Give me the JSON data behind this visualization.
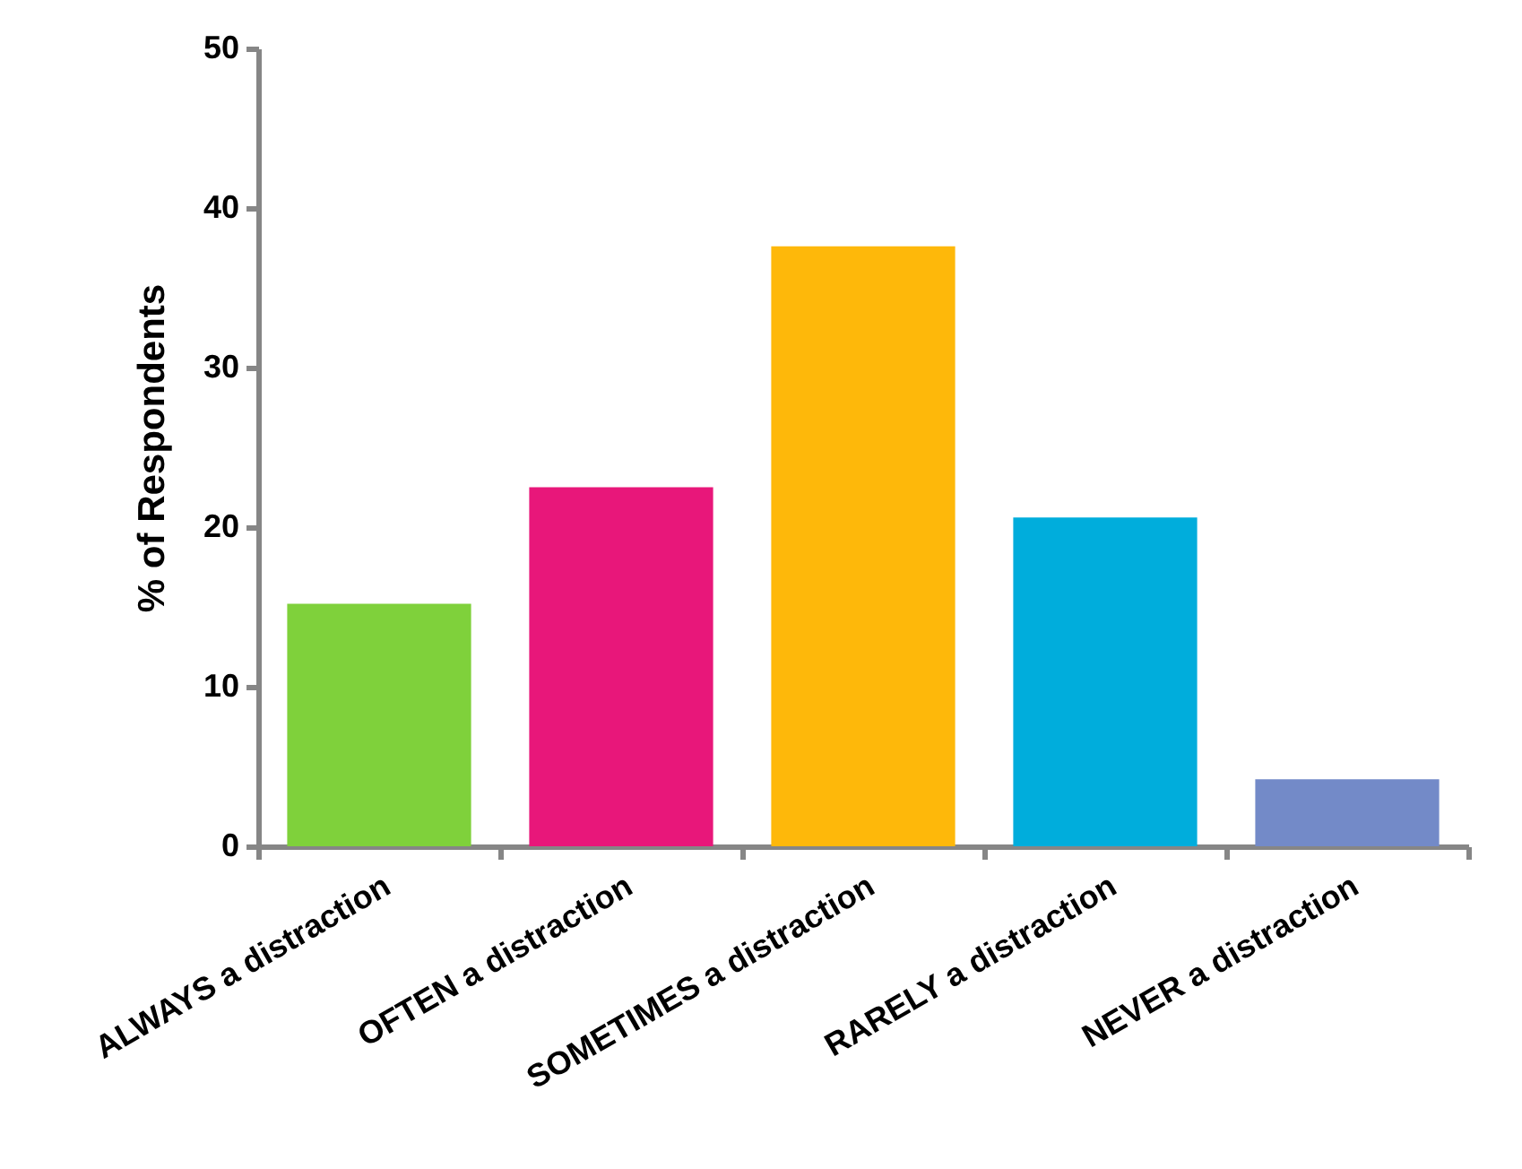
{
  "chart_data": {
    "type": "bar",
    "ylabel": "% of Respondents",
    "categories": [
      "ALWAYS a distraction",
      "OFTEN a distraction",
      "SOMETIMES a distraction",
      "RARELY a distraction",
      "NEVER a distraction"
    ],
    "values": [
      15.2,
      22.5,
      37.6,
      20.6,
      4.2
    ],
    "colors": [
      "#7fd13b",
      "#e8177a",
      "#feb80a",
      "#00addc",
      "#738ac8"
    ],
    "ylim": [
      0,
      50
    ],
    "yticks": [
      0,
      10,
      20,
      30,
      40,
      50
    ],
    "grid": false
  }
}
